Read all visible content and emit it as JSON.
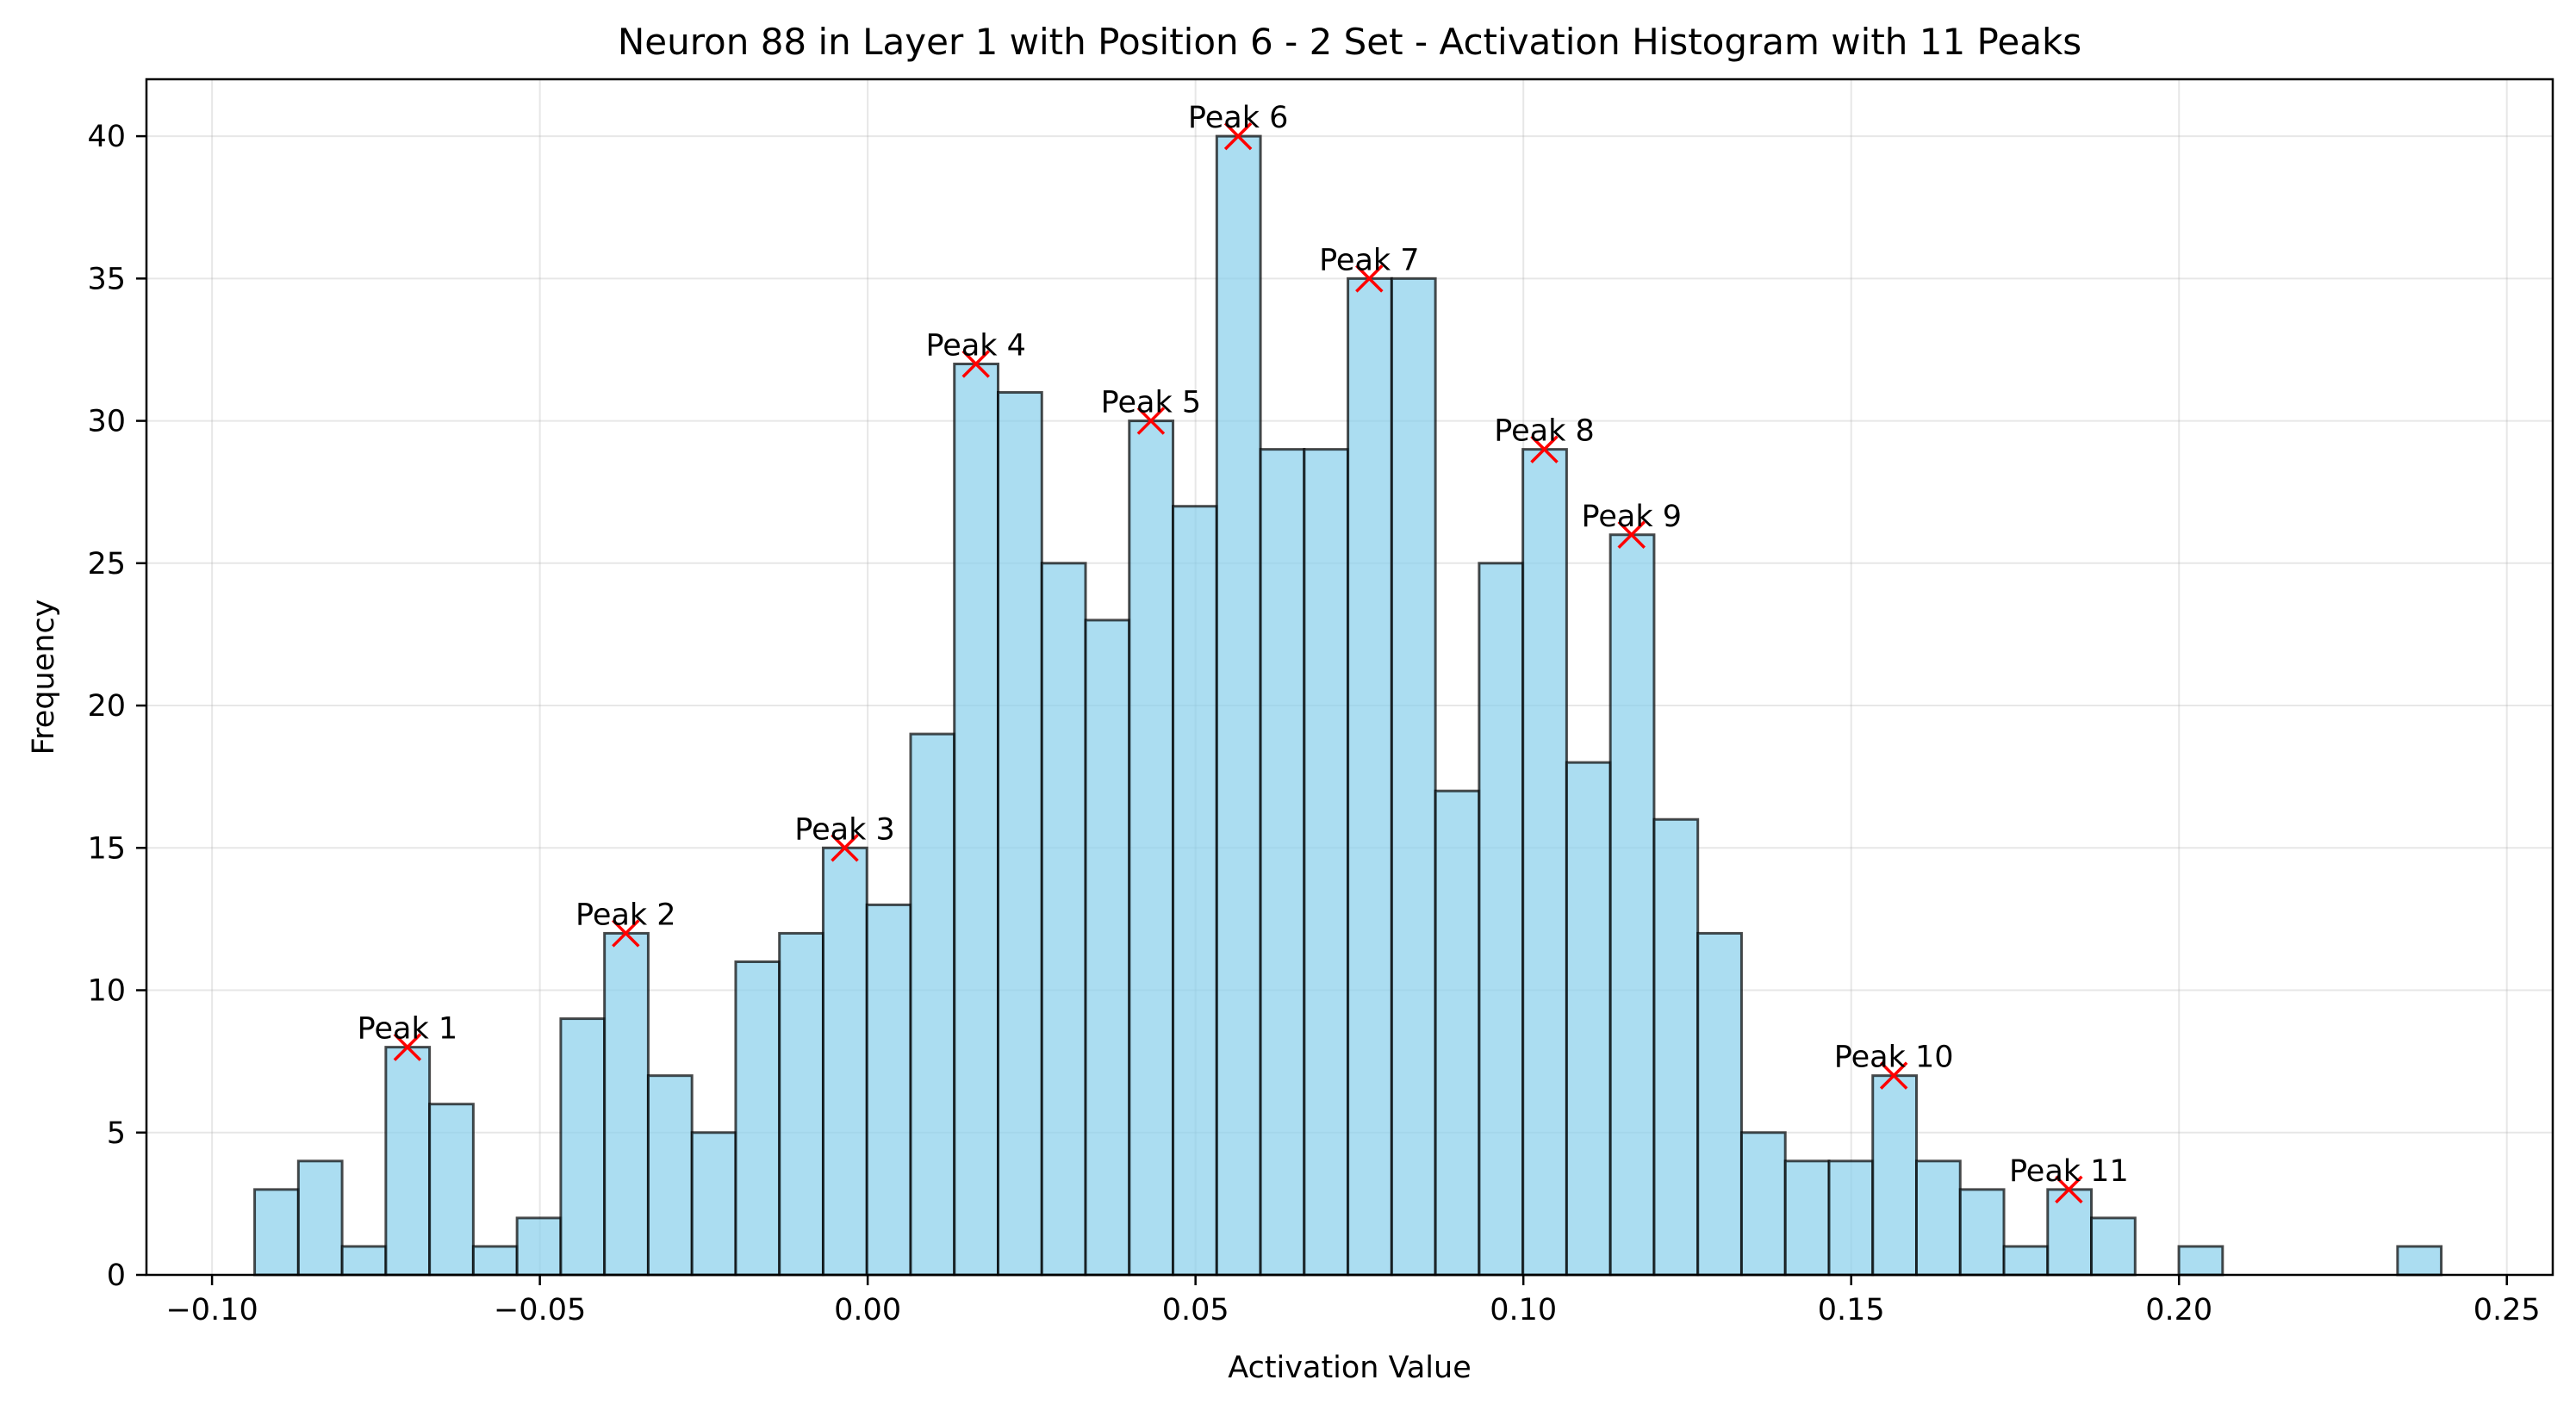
{
  "chart_data": {
    "type": "bar",
    "title": "Neuron 88 in Layer 1 with Position 6 - 2 Set - Activation Histogram with 11 Peaks",
    "xlabel": "Activation Value",
    "ylabel": "Frequency",
    "xlim": [
      -0.11,
      0.257
    ],
    "ylim": [
      0,
      42
    ],
    "xticks": [
      -0.1,
      -0.05,
      0.0,
      0.05,
      0.1,
      0.15,
      0.2,
      0.25
    ],
    "xtick_labels": [
      "−0.10",
      "−0.05",
      "0.00",
      "0.05",
      "0.10",
      "0.15",
      "0.20",
      "0.25"
    ],
    "yticks": [
      0,
      5,
      10,
      15,
      20,
      25,
      30,
      35,
      40
    ],
    "ytick_labels": [
      "0",
      "5",
      "10",
      "15",
      "20",
      "25",
      "30",
      "35",
      "40"
    ],
    "grid": true,
    "bar_color": "#87ceeb",
    "bar_edge_color": "#000000",
    "peak_marker_color": "#ff0000",
    "bin_start": -0.0935,
    "bin_width": 0.00667,
    "counts": [
      3,
      4,
      1,
      8,
      6,
      1,
      2,
      9,
      12,
      7,
      5,
      11,
      12,
      15,
      13,
      19,
      32,
      31,
      25,
      23,
      30,
      27,
      40,
      29,
      29,
      35,
      35,
      17,
      25,
      29,
      18,
      26,
      16,
      12,
      5,
      4,
      4,
      7,
      4,
      3,
      1,
      3,
      2,
      0,
      1,
      0,
      0,
      0,
      0,
      1
    ],
    "peaks": [
      {
        "label": "Peak 1",
        "x": -0.0702,
        "y": 8
      },
      {
        "label": "Peak 2",
        "x": -0.0369,
        "y": 12
      },
      {
        "label": "Peak 3",
        "x": -0.0035,
        "y": 15
      },
      {
        "label": "Peak 4",
        "x": 0.0165,
        "y": 32
      },
      {
        "label": "Peak 5",
        "x": 0.0432,
        "y": 30
      },
      {
        "label": "Peak 6",
        "x": 0.0565,
        "y": 40
      },
      {
        "label": "Peak 7",
        "x": 0.0765,
        "y": 35
      },
      {
        "label": "Peak 8",
        "x": 0.1032,
        "y": 29
      },
      {
        "label": "Peak 9",
        "x": 0.1165,
        "y": 26
      },
      {
        "label": "Peak 10",
        "x": 0.1565,
        "y": 7
      },
      {
        "label": "Peak 11",
        "x": 0.1832,
        "y": 3
      }
    ]
  }
}
